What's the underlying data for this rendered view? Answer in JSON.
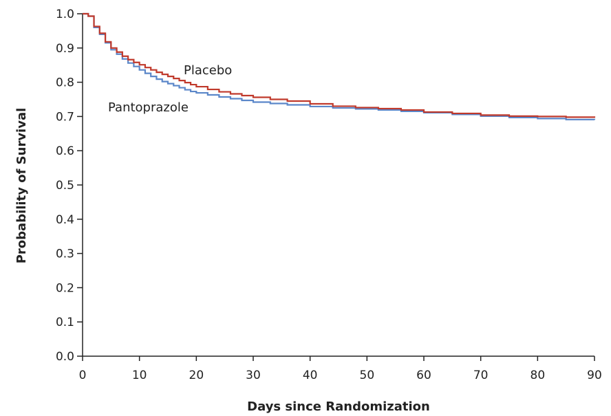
{
  "chart_data": {
    "type": "line",
    "step": true,
    "xlabel": "Days since Randomization",
    "ylabel": "Probability of Survival",
    "xlim": [
      0,
      90
    ],
    "ylim": [
      0.0,
      1.0
    ],
    "x_ticks": [
      "0",
      "10",
      "20",
      "30",
      "40",
      "50",
      "60",
      "70",
      "80",
      "90"
    ],
    "y_ticks": [
      "0.0",
      "0.1",
      "0.2",
      "0.3",
      "0.4",
      "0.5",
      "0.6",
      "0.7",
      "0.8",
      "0.9",
      "1.0"
    ],
    "grid": false,
    "legend": "inline labels",
    "series": [
      {
        "name": "Placebo",
        "color": "#c0392b",
        "x": [
          0,
          1,
          2,
          3,
          4,
          5,
          6,
          7,
          8,
          9,
          10,
          11,
          12,
          13,
          14,
          15,
          16,
          17,
          18,
          19,
          20,
          22,
          24,
          26,
          28,
          30,
          33,
          36,
          40,
          44,
          48,
          52,
          56,
          60,
          65,
          70,
          75,
          80,
          85,
          90
        ],
        "y": [
          1.0,
          0.993,
          0.963,
          0.943,
          0.918,
          0.9,
          0.888,
          0.876,
          0.866,
          0.858,
          0.851,
          0.843,
          0.836,
          0.829,
          0.823,
          0.817,
          0.811,
          0.805,
          0.799,
          0.793,
          0.787,
          0.779,
          0.772,
          0.766,
          0.761,
          0.756,
          0.75,
          0.745,
          0.737,
          0.73,
          0.726,
          0.723,
          0.719,
          0.713,
          0.709,
          0.704,
          0.701,
          0.7,
          0.698,
          0.696
        ]
      },
      {
        "name": "Pantoprazole",
        "color": "#5b87c9",
        "x": [
          0,
          1,
          2,
          3,
          4,
          5,
          6,
          7,
          8,
          9,
          10,
          11,
          12,
          13,
          14,
          15,
          16,
          17,
          18,
          19,
          20,
          22,
          24,
          26,
          28,
          30,
          33,
          36,
          40,
          44,
          48,
          52,
          56,
          60,
          65,
          70,
          75,
          80,
          85,
          90
        ],
        "y": [
          1.0,
          0.993,
          0.96,
          0.94,
          0.915,
          0.895,
          0.882,
          0.868,
          0.856,
          0.846,
          0.836,
          0.826,
          0.817,
          0.809,
          0.802,
          0.796,
          0.79,
          0.784,
          0.778,
          0.773,
          0.769,
          0.763,
          0.757,
          0.752,
          0.747,
          0.742,
          0.738,
          0.734,
          0.729,
          0.725,
          0.722,
          0.719,
          0.715,
          0.711,
          0.706,
          0.701,
          0.697,
          0.694,
          0.691,
          0.69
        ]
      }
    ]
  }
}
